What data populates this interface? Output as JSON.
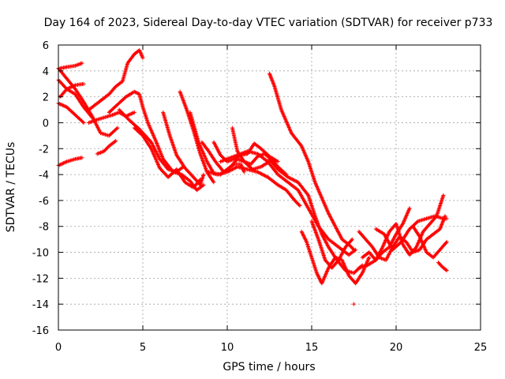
{
  "chart_data": {
    "type": "scatter",
    "title": "Day 164 of 2023, Sidereal Day-to-day VTEC variation (SDTVAR) for receiver p733",
    "xlabel": "GPS time / hours",
    "ylabel": "SDTVAR / TECUs",
    "xlim": [
      0,
      25
    ],
    "ylim": [
      -16,
      6
    ],
    "xticks": [
      0,
      5,
      10,
      15,
      20,
      25
    ],
    "yticks": [
      -16,
      -14,
      -12,
      -10,
      -8,
      -6,
      -4,
      -2,
      0,
      2,
      4,
      6
    ],
    "grid": true,
    "marker": "+",
    "color": "#ff0000",
    "series": [
      {
        "points": [
          [
            0.0,
            4.2
          ],
          [
            0.5,
            3.4
          ],
          [
            1.0,
            2.6
          ],
          [
            1.5,
            1.6
          ],
          [
            2.0,
            0.5
          ],
          [
            2.5,
            -0.8
          ],
          [
            3.0,
            -1.0
          ],
          [
            3.5,
            -0.4
          ]
        ]
      },
      {
        "points": [
          [
            0.0,
            3.3
          ],
          [
            0.5,
            2.6
          ],
          [
            1.0,
            2.2
          ],
          [
            1.5,
            1.2
          ],
          [
            2.0,
            0.4
          ]
        ]
      },
      {
        "points": [
          [
            0.0,
            1.5
          ],
          [
            0.5,
            1.2
          ],
          [
            1.0,
            0.6
          ],
          [
            1.5,
            0.0
          ]
        ]
      },
      {
        "points": [
          [
            0.0,
            -3.3
          ],
          [
            0.5,
            -3.0
          ],
          [
            1.0,
            -2.8
          ],
          [
            1.4,
            -2.7
          ]
        ]
      },
      {
        "points": [
          [
            0.1,
            4.2
          ],
          [
            0.5,
            4.3
          ],
          [
            1.0,
            4.4
          ],
          [
            1.4,
            4.6
          ]
        ]
      },
      {
        "points": [
          [
            0.1,
            2.0
          ],
          [
            0.5,
            2.6
          ],
          [
            1.0,
            2.9
          ],
          [
            1.5,
            3.0
          ]
        ]
      },
      {
        "points": [
          [
            1.8,
            1.0
          ],
          [
            2.4,
            1.6
          ],
          [
            3.0,
            2.2
          ],
          [
            3.4,
            2.8
          ],
          [
            3.8,
            3.2
          ],
          [
            4.1,
            4.6
          ],
          [
            4.5,
            5.3
          ],
          [
            4.8,
            5.6
          ],
          [
            5.0,
            5.0
          ]
        ]
      },
      {
        "points": [
          [
            1.8,
            0.0
          ],
          [
            2.2,
            0.2
          ],
          [
            2.7,
            0.4
          ],
          [
            3.2,
            0.6
          ],
          [
            3.6,
            0.8
          ],
          [
            4.0,
            0.5
          ],
          [
            4.5,
            0.8
          ]
        ]
      },
      {
        "points": [
          [
            2.3,
            -2.4
          ],
          [
            2.7,
            -2.2
          ],
          [
            3.0,
            -1.8
          ],
          [
            3.4,
            -1.4
          ]
        ]
      },
      {
        "points": [
          [
            3.0,
            0.8
          ],
          [
            3.5,
            1.4
          ],
          [
            4.0,
            2.0
          ],
          [
            4.5,
            2.4
          ],
          [
            4.8,
            2.2
          ],
          [
            5.0,
            1.2
          ],
          [
            5.3,
            0.0
          ],
          [
            5.8,
            -1.5
          ],
          [
            6.2,
            -2.8
          ],
          [
            6.8,
            -3.8
          ],
          [
            7.3,
            -4.0
          ],
          [
            7.8,
            -4.5
          ],
          [
            8.2,
            -5.2
          ],
          [
            8.6,
            -4.8
          ]
        ]
      },
      {
        "points": [
          [
            3.6,
            1.0
          ],
          [
            4.2,
            0.2
          ],
          [
            4.8,
            -0.5
          ],
          [
            5.5,
            -1.5
          ],
          [
            6.0,
            -2.8
          ],
          [
            6.5,
            -3.6
          ],
          [
            7.0,
            -3.8
          ],
          [
            7.4,
            -3.4
          ]
        ]
      },
      {
        "points": [
          [
            4.5,
            -0.4
          ],
          [
            5.0,
            -1.0
          ],
          [
            5.5,
            -2.0
          ],
          [
            6.0,
            -3.5
          ],
          [
            6.5,
            -4.2
          ],
          [
            7.0,
            -3.6
          ],
          [
            7.5,
            -4.6
          ],
          [
            8.0,
            -5.0
          ],
          [
            8.4,
            -4.4
          ]
        ]
      },
      {
        "points": [
          [
            6.2,
            0.8
          ],
          [
            6.6,
            -1.0
          ],
          [
            7.0,
            -2.5
          ],
          [
            7.5,
            -3.5
          ],
          [
            8.0,
            -4.2
          ],
          [
            8.4,
            -4.8
          ],
          [
            8.6,
            -4.0
          ]
        ]
      },
      {
        "points": [
          [
            7.2,
            2.4
          ],
          [
            7.6,
            1.0
          ],
          [
            8.0,
            -0.6
          ],
          [
            8.4,
            -2.4
          ],
          [
            8.8,
            -3.8
          ],
          [
            9.2,
            -4.6
          ]
        ]
      },
      {
        "points": [
          [
            7.8,
            0.8
          ],
          [
            8.3,
            -1.5
          ],
          [
            8.8,
            -3.0
          ],
          [
            9.2,
            -3.9
          ],
          [
            9.6,
            -4.0
          ],
          [
            10.0,
            -3.6
          ],
          [
            10.4,
            -3.2
          ],
          [
            10.8,
            -3.2
          ],
          [
            11.0,
            -3.8
          ]
        ]
      },
      {
        "points": [
          [
            8.5,
            -1.5
          ],
          [
            8.9,
            -2.2
          ],
          [
            9.3,
            -3.0
          ],
          [
            9.8,
            -3.8
          ],
          [
            10.2,
            -3.4
          ],
          [
            10.6,
            -2.8
          ],
          [
            11.0,
            -3.0
          ],
          [
            11.5,
            -3.6
          ],
          [
            12.0,
            -3.4
          ],
          [
            12.5,
            -3.0
          ]
        ]
      },
      {
        "points": [
          [
            9.2,
            -1.5
          ],
          [
            9.6,
            -2.5
          ],
          [
            10.0,
            -3.0
          ],
          [
            10.4,
            -2.8
          ],
          [
            10.8,
            -2.5
          ],
          [
            11.2,
            -2.4
          ],
          [
            11.6,
            -1.6
          ],
          [
            12.0,
            -2.0
          ],
          [
            12.5,
            -2.6
          ],
          [
            13.0,
            -3.0
          ]
        ]
      },
      {
        "points": [
          [
            10.3,
            -0.4
          ],
          [
            10.6,
            -2.2
          ],
          [
            11.0,
            -3.0
          ],
          [
            11.4,
            -3.2
          ],
          [
            11.8,
            -2.6
          ],
          [
            12.2,
            -2.4
          ],
          [
            12.6,
            -2.8
          ],
          [
            13.0,
            -3.4
          ],
          [
            13.5,
            -4.0
          ]
        ]
      },
      {
        "points": [
          [
            8.9,
            -3.8
          ],
          [
            9.4,
            -4.0
          ],
          [
            10.0,
            -3.8
          ],
          [
            10.6,
            -3.4
          ],
          [
            11.2,
            -3.6
          ],
          [
            11.8,
            -3.8
          ],
          [
            12.4,
            -4.2
          ],
          [
            13.0,
            -4.8
          ],
          [
            13.5,
            -5.2
          ],
          [
            14.0,
            -6.0
          ],
          [
            14.3,
            -6.4
          ]
        ]
      },
      {
        "points": [
          [
            9.6,
            -3.0
          ],
          [
            10.4,
            -2.6
          ],
          [
            11.2,
            -2.2
          ],
          [
            11.8,
            -2.4
          ],
          [
            12.4,
            -3.0
          ],
          [
            13.0,
            -4.0
          ],
          [
            13.6,
            -4.6
          ],
          [
            14.2,
            -5.2
          ],
          [
            14.8,
            -6.6
          ],
          [
            15.4,
            -8.0
          ],
          [
            16.0,
            -9.0
          ],
          [
            16.6,
            -9.6
          ],
          [
            17.2,
            -10.2
          ],
          [
            17.6,
            -9.8
          ]
        ]
      },
      {
        "points": [
          [
            12.5,
            3.8
          ],
          [
            12.8,
            2.8
          ],
          [
            13.2,
            1.0
          ],
          [
            13.8,
            -0.8
          ],
          [
            14.4,
            -1.8
          ],
          [
            14.8,
            -3.0
          ],
          [
            15.2,
            -4.6
          ],
          [
            15.6,
            -5.8
          ],
          [
            16.0,
            -7.0
          ],
          [
            16.4,
            -8.0
          ],
          [
            16.8,
            -9.0
          ],
          [
            17.2,
            -9.4
          ],
          [
            17.5,
            -9.8
          ]
        ]
      },
      {
        "points": [
          [
            12.5,
            -2.8
          ],
          [
            13.0,
            -3.6
          ],
          [
            13.6,
            -4.2
          ],
          [
            14.2,
            -4.6
          ],
          [
            14.8,
            -5.6
          ],
          [
            15.2,
            -7.2
          ],
          [
            15.6,
            -8.6
          ],
          [
            16.0,
            -9.6
          ],
          [
            16.5,
            -10.6
          ],
          [
            17.0,
            -11.4
          ],
          [
            17.5,
            -11.6
          ],
          [
            18.0,
            -11.0
          ]
        ]
      },
      {
        "points": [
          [
            14.4,
            -8.4
          ],
          [
            14.7,
            -9.2
          ],
          [
            15.0,
            -10.4
          ],
          [
            15.3,
            -11.6
          ],
          [
            15.6,
            -12.4
          ],
          [
            16.0,
            -11.2
          ],
          [
            16.4,
            -10.4
          ],
          [
            16.8,
            -10.6
          ],
          [
            17.2,
            -11.8
          ],
          [
            17.6,
            -12.4
          ],
          [
            18.0,
            -11.6
          ],
          [
            18.4,
            -10.4
          ]
        ]
      },
      {
        "points": [
          [
            15.0,
            -7.6
          ],
          [
            15.4,
            -9.0
          ],
          [
            15.8,
            -10.6
          ],
          [
            16.2,
            -11.2
          ],
          [
            16.6,
            -10.6
          ],
          [
            17.0,
            -9.6
          ],
          [
            17.4,
            -9.0
          ]
        ]
      },
      {
        "points": [
          [
            17.5,
            -14.0
          ]
        ]
      },
      {
        "points": [
          [
            17.8,
            -8.4
          ],
          [
            18.2,
            -9.0
          ],
          [
            18.6,
            -9.6
          ],
          [
            19.0,
            -10.4
          ],
          [
            19.4,
            -10.6
          ],
          [
            19.8,
            -9.6
          ],
          [
            20.2,
            -8.8
          ],
          [
            20.6,
            -9.2
          ],
          [
            21.0,
            -10.0
          ],
          [
            21.4,
            -9.8
          ],
          [
            21.8,
            -9.0
          ],
          [
            22.2,
            -8.6
          ],
          [
            22.6,
            -8.2
          ],
          [
            22.9,
            -7.2
          ]
        ]
      },
      {
        "points": [
          [
            18.0,
            -10.4
          ],
          [
            18.4,
            -10.0
          ],
          [
            18.8,
            -10.6
          ],
          [
            19.2,
            -9.6
          ],
          [
            19.6,
            -8.4
          ],
          [
            20.0,
            -7.8
          ],
          [
            20.4,
            -9.4
          ],
          [
            20.8,
            -10.2
          ],
          [
            21.2,
            -9.6
          ],
          [
            21.6,
            -8.4
          ],
          [
            22.0,
            -7.8
          ],
          [
            22.4,
            -7.2
          ],
          [
            22.8,
            -5.6
          ]
        ]
      },
      {
        "points": [
          [
            17.8,
            -11.2
          ],
          [
            18.3,
            -11.0
          ],
          [
            18.8,
            -10.6
          ],
          [
            19.2,
            -10.0
          ],
          [
            19.6,
            -9.6
          ],
          [
            20.0,
            -8.6
          ],
          [
            20.4,
            -7.8
          ],
          [
            20.8,
            -6.6
          ]
        ]
      },
      {
        "points": [
          [
            21.0,
            -8.0
          ],
          [
            21.4,
            -8.8
          ],
          [
            21.8,
            -10.0
          ],
          [
            22.2,
            -10.4
          ],
          [
            22.6,
            -9.8
          ],
          [
            23.0,
            -9.2
          ]
        ]
      },
      {
        "points": [
          [
            22.5,
            -10.8
          ],
          [
            22.8,
            -11.2
          ],
          [
            23.0,
            -11.4
          ]
        ]
      },
      {
        "points": [
          [
            18.8,
            -8.2
          ],
          [
            19.3,
            -8.6
          ],
          [
            19.8,
            -9.8
          ],
          [
            20.3,
            -9.2
          ],
          [
            20.8,
            -8.2
          ],
          [
            21.3,
            -7.6
          ],
          [
            21.8,
            -7.4
          ],
          [
            22.3,
            -7.2
          ],
          [
            22.8,
            -7.4
          ],
          [
            23.0,
            -7.4
          ]
        ]
      }
    ]
  }
}
